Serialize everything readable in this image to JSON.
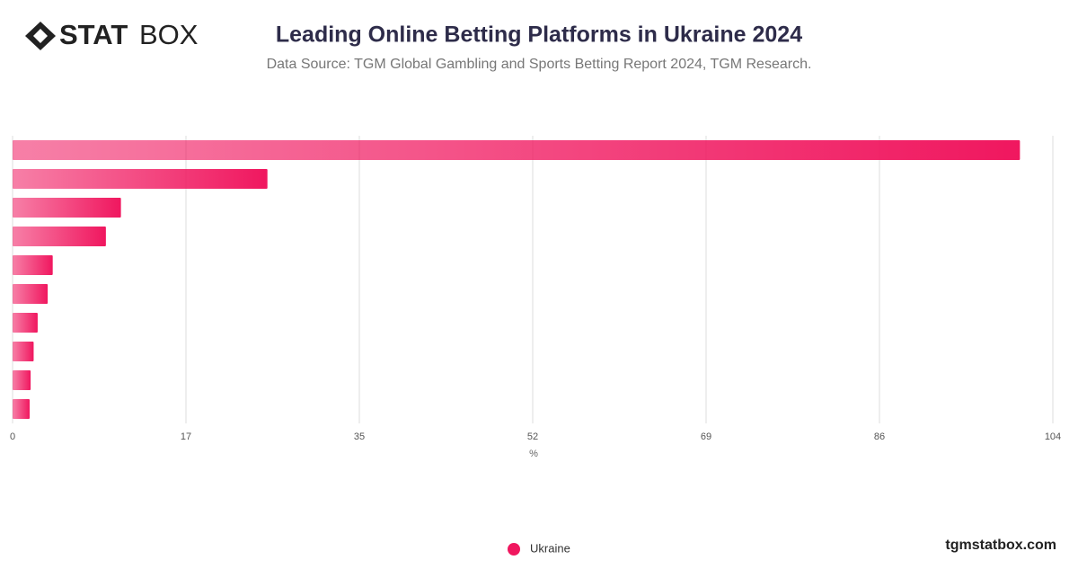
{
  "brand": {
    "logo_bold": "STAT",
    "logo_light": "BOX",
    "website": "tgmstatbox.com"
  },
  "chart_data": {
    "type": "bar",
    "orientation": "horizontal",
    "title": "Leading Online Betting Platforms in Ukraine 2024",
    "subtitle": "Data Source: TGM Global Gambling and Sports Betting Report 2024, TGM Research.",
    "x_label": "%",
    "categories": [
      null,
      null,
      null,
      null,
      null,
      null,
      null,
      null,
      null,
      null
    ],
    "series": [
      {
        "name": "Ukraine",
        "color": "#f0175f",
        "values": [
          100.4,
          25.4,
          10.8,
          9.3,
          4.0,
          3.5,
          2.5,
          2.1,
          1.8,
          1.7
        ]
      }
    ],
    "xlim": [
      0,
      103.68
    ],
    "xticks": [
      0,
      {
        "value": 17.28,
        "label": "17"
      },
      {
        "value": 34.56,
        "label": "35"
      },
      {
        "value": 51.84,
        "label": "52"
      },
      {
        "value": 69.12,
        "label": "69"
      },
      {
        "value": 86.4,
        "label": "86"
      },
      {
        "value": 103.68,
        "label": "104"
      }
    ],
    "grid": true,
    "legend": "bottom"
  }
}
